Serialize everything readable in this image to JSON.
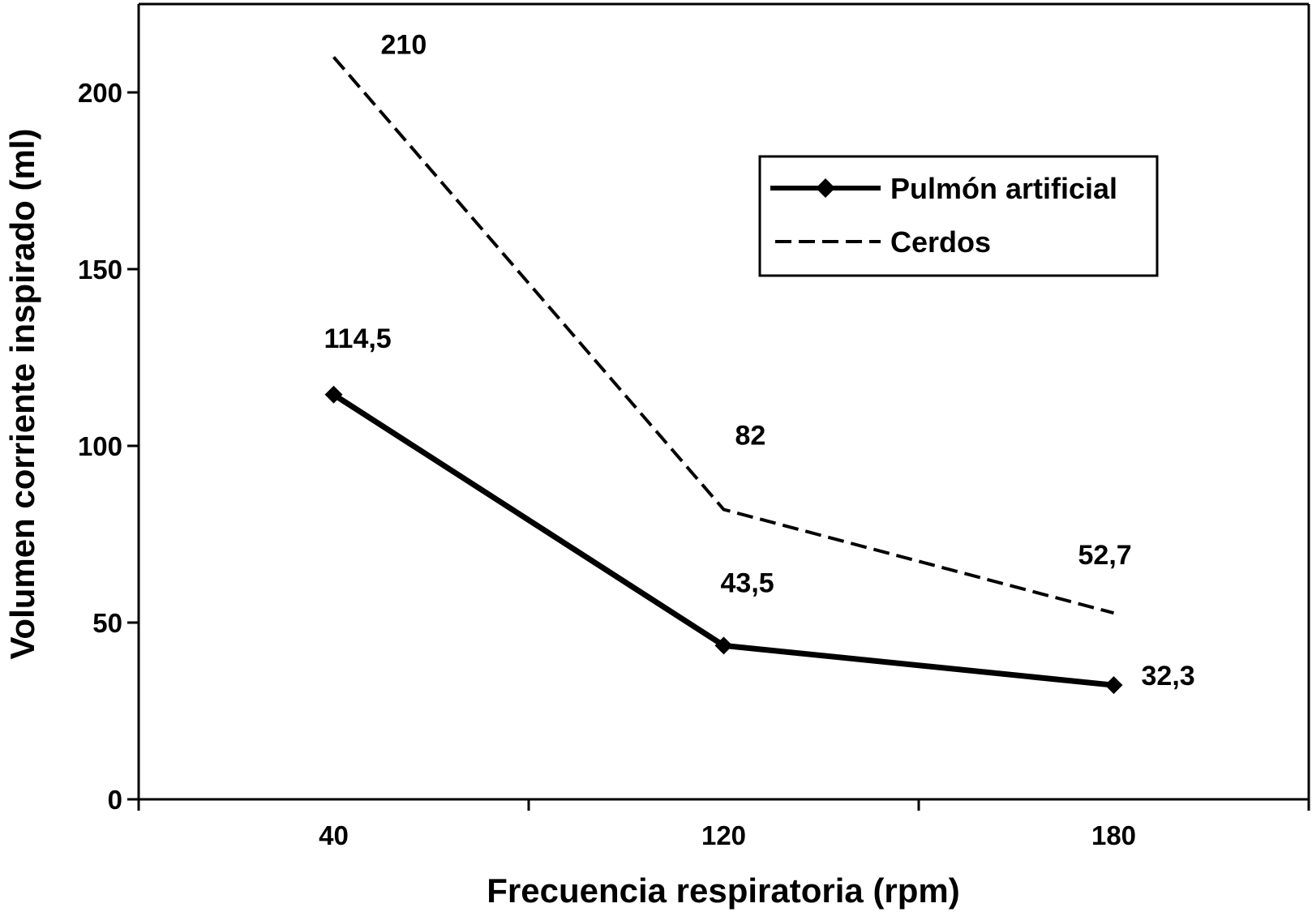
{
  "chart_data": {
    "type": "line",
    "title": "",
    "xlabel": "Frecuencia respiratoria (rpm)",
    "ylabel": "Volumen corriente inspirado  (ml)",
    "categories": [
      "40",
      "120",
      "180"
    ],
    "ylim": [
      0,
      225
    ],
    "yticks": [
      0,
      50,
      100,
      150,
      200
    ],
    "ytick_labels": [
      "0",
      "50",
      "100",
      "150",
      "200"
    ],
    "grid": false,
    "legend_position": "top-right",
    "series": [
      {
        "name": "Pulmón artificial",
        "values": [
          114.5,
          43.5,
          32.3
        ],
        "labels": [
          "114,5",
          "43,5",
          "32,3"
        ],
        "style": "solid",
        "marker": "diamond",
        "color": "#000000"
      },
      {
        "name": "Cerdos",
        "values": [
          210,
          82,
          52.7
        ],
        "labels": [
          "210",
          "82",
          "52,7"
        ],
        "style": "dashed",
        "marker": "none",
        "color": "#000000"
      }
    ]
  }
}
